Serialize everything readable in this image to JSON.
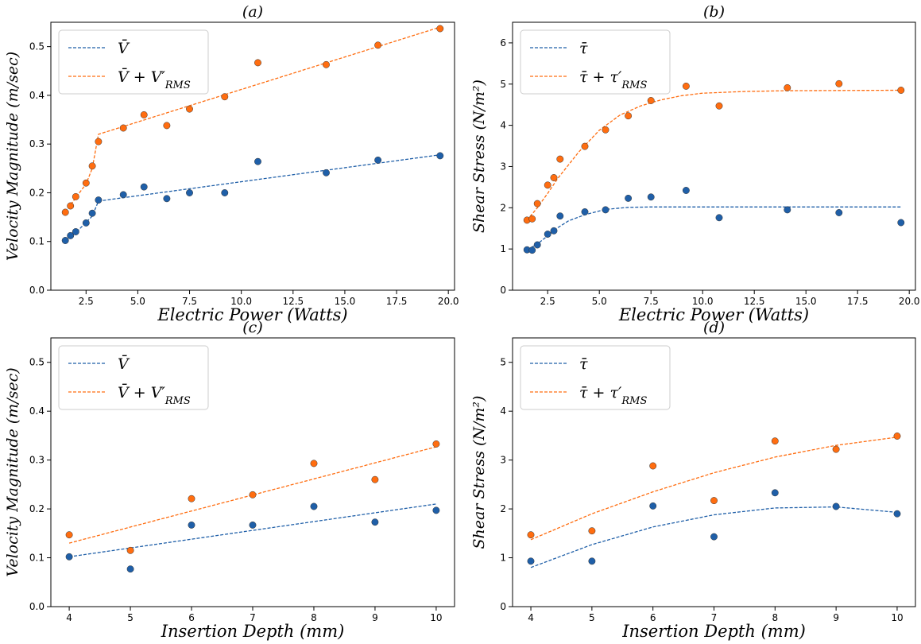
{
  "colors": {
    "mean": "#1f5fa8",
    "rms": "#ff6d10"
  },
  "chart_data": [
    {
      "type": "scatter",
      "title": "(a)",
      "xlabel": "Electric Power (Watts)",
      "ylabel": "Velocity Magnitude (m/sec)",
      "xlim": [
        0.8,
        20.3
      ],
      "ylim": [
        0.0,
        0.55
      ],
      "xticks": [
        2.5,
        5.0,
        7.5,
        10.0,
        12.5,
        15.0,
        17.5,
        20.0
      ],
      "xtick_labels": [
        "2.5",
        "5.0",
        "7.5",
        "10.0",
        "12.5",
        "15.0",
        "17.5",
        "20.0"
      ],
      "yticks": [
        0.0,
        0.1,
        0.2,
        0.3,
        0.4,
        0.5
      ],
      "ytick_labels": [
        "0.0",
        "0.1",
        "0.2",
        "0.3",
        "0.4",
        "0.5"
      ],
      "legend": [
        "V̄",
        "V̄ + V′RMS"
      ],
      "legend_position": "top-left",
      "series": [
        {
          "name": "V̄",
          "points": [
            [
              1.5,
              0.102
            ],
            [
              1.75,
              0.112
            ],
            [
              2.0,
              0.12
            ],
            [
              2.5,
              0.138
            ],
            [
              2.8,
              0.158
            ],
            [
              3.1,
              0.185
            ],
            [
              4.3,
              0.196
            ],
            [
              5.3,
              0.212
            ],
            [
              6.4,
              0.188
            ],
            [
              7.5,
              0.2
            ],
            [
              9.2,
              0.2
            ],
            [
              10.8,
              0.264
            ],
            [
              14.1,
              0.241
            ],
            [
              16.6,
              0.267
            ],
            [
              19.6,
              0.276
            ]
          ],
          "fit": [
            [
              1.5,
              0.102
            ],
            [
              2.0,
              0.118
            ],
            [
              2.8,
              0.152
            ],
            [
              3.1,
              0.183
            ],
            [
              19.6,
              0.278
            ]
          ]
        },
        {
          "name": "V̄ + V′RMS",
          "points": [
            [
              1.5,
              0.16
            ],
            [
              1.75,
              0.173
            ],
            [
              2.0,
              0.192
            ],
            [
              2.5,
              0.22
            ],
            [
              2.8,
              0.255
            ],
            [
              3.1,
              0.305
            ],
            [
              4.3,
              0.333
            ],
            [
              5.3,
              0.36
            ],
            [
              6.4,
              0.338
            ],
            [
              7.5,
              0.372
            ],
            [
              9.2,
              0.397
            ],
            [
              10.8,
              0.467
            ],
            [
              14.1,
              0.463
            ],
            [
              16.6,
              0.503
            ],
            [
              19.6,
              0.537
            ]
          ],
          "fit": [
            [
              1.5,
              0.16
            ],
            [
              2.0,
              0.19
            ],
            [
              2.5,
              0.218
            ],
            [
              2.8,
              0.25
            ],
            [
              3.1,
              0.32
            ],
            [
              19.6,
              0.54
            ]
          ]
        }
      ]
    },
    {
      "type": "scatter",
      "title": "(b)",
      "xlabel": "Electric Power (Watts)",
      "ylabel": "Shear Stress (N/m²)",
      "xlim": [
        0.8,
        20.3
      ],
      "ylim": [
        0,
        6.5
      ],
      "xticks": [
        2.5,
        5.0,
        7.5,
        10.0,
        12.5,
        15.0,
        17.5,
        20.0
      ],
      "xtick_labels": [
        "2.5",
        "5.0",
        "7.5",
        "10.0",
        "12.5",
        "15.0",
        "17.5",
        "20.0"
      ],
      "yticks": [
        0,
        1,
        2,
        3,
        4,
        5,
        6
      ],
      "ytick_labels": [
        "0",
        "1",
        "2",
        "3",
        "4",
        "5",
        "6"
      ],
      "legend": [
        "τ̄",
        "τ̄ + τ′RMS"
      ],
      "legend_position": "top-left",
      "series": [
        {
          "name": "τ̄",
          "points": [
            [
              1.5,
              0.98
            ],
            [
              1.75,
              0.97
            ],
            [
              2.0,
              1.1
            ],
            [
              2.5,
              1.36
            ],
            [
              2.8,
              1.44
            ],
            [
              3.1,
              1.8
            ],
            [
              4.3,
              1.9
            ],
            [
              5.3,
              1.95
            ],
            [
              6.4,
              2.23
            ],
            [
              7.5,
              2.26
            ],
            [
              9.2,
              2.42
            ],
            [
              10.8,
              1.76
            ],
            [
              14.1,
              1.95
            ],
            [
              16.6,
              1.88
            ],
            [
              19.6,
              1.64
            ]
          ],
          "fit": [
            [
              1.5,
              0.98
            ],
            [
              2.0,
              1.12
            ],
            [
              2.5,
              1.32
            ],
            [
              3.0,
              1.52
            ],
            [
              3.5,
              1.68
            ],
            [
              4.3,
              1.83
            ],
            [
              5.3,
              1.96
            ],
            [
              6.4,
              2.01
            ],
            [
              7.5,
              2.02
            ],
            [
              19.6,
              2.02
            ]
          ]
        },
        {
          "name": "τ̄ + τ′RMS",
          "points": [
            [
              1.5,
              1.7
            ],
            [
              1.75,
              1.73
            ],
            [
              2.0,
              2.1
            ],
            [
              2.5,
              2.55
            ],
            [
              2.8,
              2.73
            ],
            [
              3.1,
              3.18
            ],
            [
              4.3,
              3.49
            ],
            [
              5.3,
              3.89
            ],
            [
              6.4,
              4.23
            ],
            [
              7.5,
              4.6
            ],
            [
              9.2,
              4.95
            ],
            [
              10.8,
              4.47
            ],
            [
              14.1,
              4.91
            ],
            [
              16.6,
              5.01
            ],
            [
              19.6,
              4.85
            ]
          ],
          "fit": [
            [
              1.5,
              1.7
            ],
            [
              2.0,
              2.0
            ],
            [
              2.5,
              2.35
            ],
            [
              3.0,
              2.72
            ],
            [
              4.0,
              3.35
            ],
            [
              5.0,
              3.88
            ],
            [
              6.0,
              4.25
            ],
            [
              7.0,
              4.47
            ],
            [
              8.0,
              4.62
            ],
            [
              9.0,
              4.72
            ],
            [
              10.0,
              4.78
            ],
            [
              12.0,
              4.82
            ],
            [
              14.0,
              4.84
            ],
            [
              19.6,
              4.85
            ]
          ]
        }
      ]
    },
    {
      "type": "scatter",
      "title": "(c)",
      "xlabel": "Insertion Depth (mm)",
      "ylabel": "Velocity Magnitude (m/sec)",
      "xlim": [
        3.7,
        10.3
      ],
      "ylim": [
        0.0,
        0.55
      ],
      "xticks": [
        4,
        5,
        6,
        7,
        8,
        9,
        10
      ],
      "xtick_labels": [
        "4",
        "5",
        "6",
        "7",
        "8",
        "9",
        "10"
      ],
      "yticks": [
        0.0,
        0.1,
        0.2,
        0.3,
        0.4,
        0.5
      ],
      "ytick_labels": [
        "0.0",
        "0.1",
        "0.2",
        "0.3",
        "0.4",
        "0.5"
      ],
      "legend": [
        "V̄",
        "V̄ + V′RMS"
      ],
      "legend_position": "top-left",
      "series": [
        {
          "name": "V̄",
          "points": [
            [
              4,
              0.102
            ],
            [
              5,
              0.077
            ],
            [
              6,
              0.167
            ],
            [
              7,
              0.167
            ],
            [
              8,
              0.205
            ],
            [
              9,
              0.173
            ],
            [
              10,
              0.197
            ]
          ],
          "fit": [
            [
              4,
              0.102
            ],
            [
              10,
              0.21
            ]
          ]
        },
        {
          "name": "V̄ + V′RMS",
          "points": [
            [
              4,
              0.147
            ],
            [
              5,
              0.115
            ],
            [
              6,
              0.221
            ],
            [
              7,
              0.229
            ],
            [
              8,
              0.293
            ],
            [
              9,
              0.26
            ],
            [
              10,
              0.333
            ]
          ],
          "fit": [
            [
              4,
              0.13
            ],
            [
              10,
              0.327
            ]
          ]
        }
      ]
    },
    {
      "type": "scatter",
      "title": "(d)",
      "xlabel": "Insertion Depth (mm)",
      "ylabel": "Shear Stress (N/m²)",
      "xlim": [
        3.7,
        10.3
      ],
      "ylim": [
        0,
        5.5
      ],
      "xticks": [
        4,
        5,
        6,
        7,
        8,
        9,
        10
      ],
      "xtick_labels": [
        "4",
        "5",
        "6",
        "7",
        "8",
        "9",
        "10"
      ],
      "yticks": [
        0,
        1,
        2,
        3,
        4,
        5
      ],
      "ytick_labels": [
        "0",
        "1",
        "2",
        "3",
        "4",
        "5"
      ],
      "legend": [
        "τ̄",
        "τ̄ + τ′RMS"
      ],
      "legend_position": "top-left",
      "series": [
        {
          "name": "τ̄",
          "points": [
            [
              4,
              0.93
            ],
            [
              5,
              0.93
            ],
            [
              6,
              2.06
            ],
            [
              7,
              1.43
            ],
            [
              8,
              2.33
            ],
            [
              9,
              2.05
            ],
            [
              10,
              1.9
            ]
          ],
          "fit": [
            [
              4,
              0.8
            ],
            [
              5,
              1.27
            ],
            [
              6,
              1.63
            ],
            [
              7,
              1.88
            ],
            [
              8,
              2.02
            ],
            [
              9,
              2.04
            ],
            [
              10,
              1.93
            ]
          ]
        },
        {
          "name": "τ̄ + τ′RMS",
          "points": [
            [
              4,
              1.47
            ],
            [
              5,
              1.55
            ],
            [
              6,
              2.88
            ],
            [
              7,
              2.17
            ],
            [
              8,
              3.39
            ],
            [
              9,
              3.22
            ],
            [
              10,
              3.49
            ]
          ],
          "fit": [
            [
              4,
              1.37
            ],
            [
              5,
              1.9
            ],
            [
              6,
              2.35
            ],
            [
              7,
              2.74
            ],
            [
              8,
              3.06
            ],
            [
              9,
              3.3
            ],
            [
              10,
              3.47
            ]
          ]
        }
      ]
    }
  ]
}
